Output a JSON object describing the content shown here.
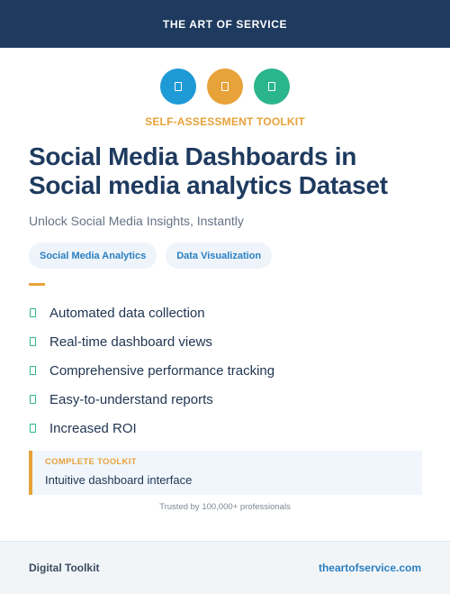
{
  "brand": {
    "name": "THE ART OF SERVICE"
  },
  "icons": [
    {
      "name": "doc-icon",
      "color": "#1e9ad6"
    },
    {
      "name": "doc-icon",
      "color": "#e8a23a"
    },
    {
      "name": "doc-icon",
      "color": "#2bb58c"
    }
  ],
  "kicker": "SELF-ASSESSMENT TOOLKIT",
  "title": "Social Media Dashboards in Social media analytics Dataset",
  "subtitle": "Unlock Social Media Insights, Instantly",
  "tags": [
    "Social Media Analytics",
    "Data Visualization"
  ],
  "features": [
    "Automated data collection",
    "Real-time dashboard views",
    "Comprehensive performance tracking",
    "Easy-to-understand reports",
    "Increased ROI"
  ],
  "callout": {
    "label": "COMPLETE TOOLKIT",
    "text": "Intuitive dashboard interface"
  },
  "trust": "Trusted by 100,000+ professionals",
  "footer": {
    "left": "Digital Toolkit",
    "right": "theartofservice.com"
  },
  "colors": {
    "navy": "#1e3a5f",
    "orange": "#e8a23a",
    "blue": "#2a7fc1",
    "green": "#2bb58c"
  }
}
